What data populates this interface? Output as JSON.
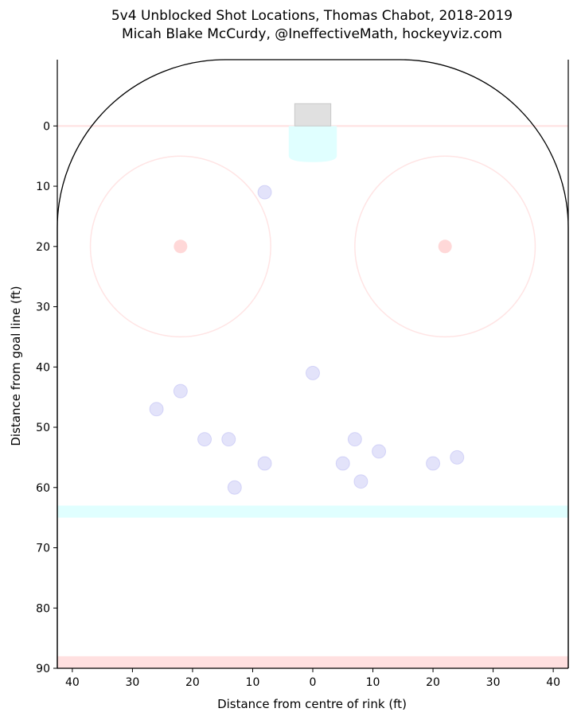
{
  "chart_data": {
    "type": "scatter",
    "title": "5v4 Unblocked Shot Locations, Thomas Chabot, 2018-2019",
    "subtitle": "Micah Blake McCurdy, @IneffectiveMath, hockeyviz.com",
    "xlabel": "Distance from centre of rink (ft)",
    "ylabel": "Distance from goal line (ft)",
    "xlim": [
      42.5,
      -42.5
    ],
    "ylim": [
      90,
      -11
    ],
    "x_ticks": [
      40,
      30,
      20,
      10,
      0,
      10,
      20,
      30,
      40
    ],
    "y_ticks": [
      0,
      10,
      20,
      30,
      40,
      50,
      60,
      70,
      80,
      90
    ],
    "grid": false,
    "points_color": "#6666e6",
    "points": [
      {
        "x": 8,
        "y": 11
      },
      {
        "x": 0,
        "y": 41
      },
      {
        "x": 22,
        "y": 44
      },
      {
        "x": 26,
        "y": 47
      },
      {
        "x": 18,
        "y": 52
      },
      {
        "x": 14,
        "y": 52
      },
      {
        "x": 8,
        "y": 56
      },
      {
        "x": 13,
        "y": 60
      },
      {
        "x": -7,
        "y": 52
      },
      {
        "x": -5,
        "y": 56
      },
      {
        "x": -11,
        "y": 54
      },
      {
        "x": -8,
        "y": 59
      },
      {
        "x": -20,
        "y": 56
      },
      {
        "x": -24,
        "y": 55
      }
    ],
    "rink": {
      "goal_line_color": "#ffe0e0",
      "blue_line_color": "#e0ffff",
      "red_line_color": "#ffe0e0",
      "crease_color": "#e0ffff",
      "net_color": "#e0e0e0",
      "faceoff_circle_color": "#ffe4e4",
      "faceoff_dot_color": "#ffd8d8"
    }
  }
}
